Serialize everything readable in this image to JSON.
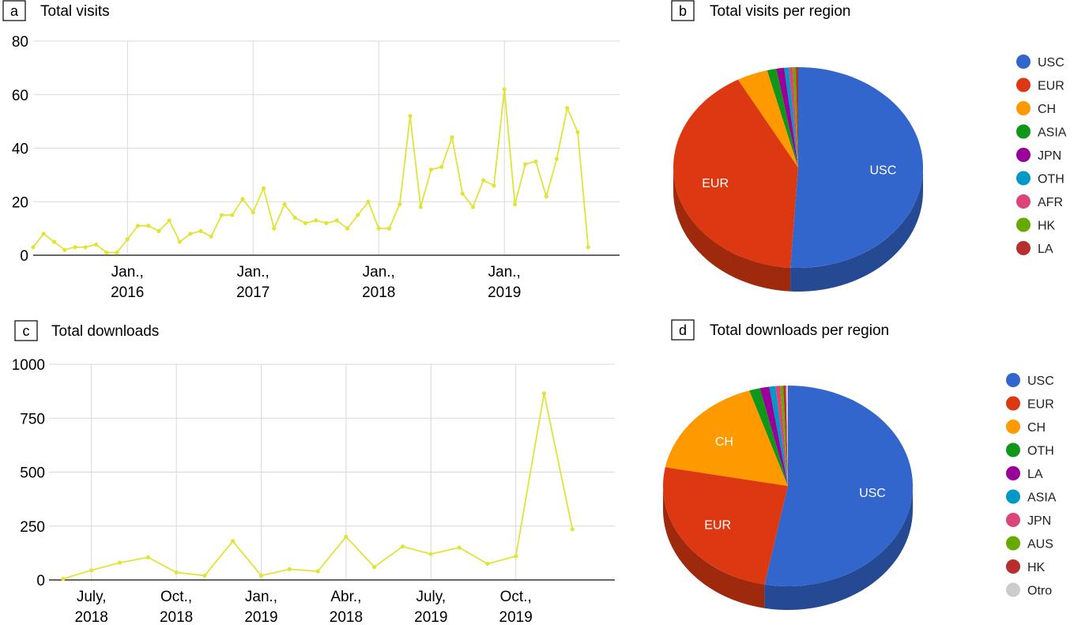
{
  "chart_data": [
    {
      "panel": "a",
      "type": "line",
      "title": "Total visits",
      "ylim": [
        0,
        80
      ],
      "yticks": [
        0,
        20,
        40,
        60,
        80
      ],
      "xlim": [
        "2015-04",
        "2019-12"
      ],
      "xticks": [
        {
          "date": "2016-01",
          "label": [
            "Jan.,",
            "2016"
          ]
        },
        {
          "date": "2017-01",
          "label": [
            "Jan.,",
            "2017"
          ]
        },
        {
          "date": "2018-01",
          "label": [
            "Jan.,",
            "2018"
          ]
        },
        {
          "date": "2019-01",
          "label": [
            "Jan.,",
            "2019"
          ]
        }
      ],
      "grid": true,
      "color": "#E1E337",
      "points": [
        [
          "2015-04",
          3
        ],
        [
          "2015-05",
          8
        ],
        [
          "2015-06",
          5
        ],
        [
          "2015-07",
          2
        ],
        [
          "2015-08",
          3
        ],
        [
          "2015-09",
          3
        ],
        [
          "2015-10",
          4
        ],
        [
          "2015-11",
          1
        ],
        [
          "2015-12",
          1
        ],
        [
          "2016-01",
          6
        ],
        [
          "2016-02",
          11
        ],
        [
          "2016-03",
          11
        ],
        [
          "2016-04",
          9
        ],
        [
          "2016-05",
          13
        ],
        [
          "2016-06",
          5
        ],
        [
          "2016-07",
          8
        ],
        [
          "2016-08",
          9
        ],
        [
          "2016-09",
          7
        ],
        [
          "2016-10",
          15
        ],
        [
          "2016-11",
          15
        ],
        [
          "2016-12",
          21
        ],
        [
          "2017-01",
          16
        ],
        [
          "2017-02",
          25
        ],
        [
          "2017-03",
          10
        ],
        [
          "2017-04",
          19
        ],
        [
          "2017-05",
          14
        ],
        [
          "2017-06",
          12
        ],
        [
          "2017-07",
          13
        ],
        [
          "2017-08",
          12
        ],
        [
          "2017-09",
          13
        ],
        [
          "2017-10",
          10
        ],
        [
          "2017-11",
          15
        ],
        [
          "2017-12",
          20
        ],
        [
          "2018-01",
          10
        ],
        [
          "2018-02",
          10
        ],
        [
          "2018-03",
          19
        ],
        [
          "2018-04",
          52
        ],
        [
          "2018-05",
          18
        ],
        [
          "2018-06",
          32
        ],
        [
          "2018-07",
          33
        ],
        [
          "2018-08",
          44
        ],
        [
          "2018-09",
          23
        ],
        [
          "2018-10",
          18
        ],
        [
          "2018-11",
          28
        ],
        [
          "2018-12",
          26
        ],
        [
          "2019-01",
          62
        ],
        [
          "2019-02",
          19
        ],
        [
          "2019-03",
          34
        ],
        [
          "2019-04",
          35
        ],
        [
          "2019-05",
          22
        ],
        [
          "2019-06",
          36
        ],
        [
          "2019-07",
          55
        ],
        [
          "2019-08",
          46
        ],
        [
          "2019-09",
          3
        ]
      ]
    },
    {
      "panel": "b",
      "type": "pie",
      "title": "Total visits per region",
      "legend_position": "right",
      "slices": [
        {
          "label": "USC",
          "value": 51.0,
          "color": "#3366CC",
          "show_label": true
        },
        {
          "label": "EUR",
          "value": 41.0,
          "color": "#DC3912",
          "show_label": true
        },
        {
          "label": "CH",
          "value": 4.0,
          "color": "#FF9900",
          "show_label": false
        },
        {
          "label": "ASIA",
          "value": 1.2,
          "color": "#109618",
          "show_label": false
        },
        {
          "label": "JPN",
          "value": 1.0,
          "color": "#990099",
          "show_label": false
        },
        {
          "label": "OTH",
          "value": 0.6,
          "color": "#0099C6",
          "show_label": false
        },
        {
          "label": "AFR",
          "value": 0.5,
          "color": "#DD4477",
          "show_label": false
        },
        {
          "label": "HK",
          "value": 0.4,
          "color": "#66AA00",
          "show_label": false
        },
        {
          "label": "LA",
          "value": 0.3,
          "color": "#B82E2E",
          "show_label": false
        }
      ]
    },
    {
      "panel": "c",
      "type": "line",
      "title": "Total downloads",
      "ylim": [
        0,
        1000
      ],
      "yticks": [
        0,
        250,
        500,
        750,
        1000
      ],
      "x_category_count": 20,
      "xticks": [
        {
          "index": 1,
          "label": [
            "July,",
            "2018"
          ]
        },
        {
          "index": 4,
          "label": [
            "Oct.,",
            "2018"
          ]
        },
        {
          "index": 7,
          "label": [
            "Jan.,",
            "2019"
          ]
        },
        {
          "index": 10,
          "label": [
            "Abr.,",
            "2018"
          ]
        },
        {
          "index": 13,
          "label": [
            "July,",
            "2019"
          ]
        },
        {
          "index": 16,
          "label": [
            "Oct.,",
            "2019"
          ]
        }
      ],
      "grid": true,
      "color": "#E1E337",
      "values": [
        5,
        45,
        80,
        105,
        35,
        20,
        180,
        20,
        50,
        40,
        200,
        60,
        155,
        120,
        150,
        75,
        110,
        865,
        235
      ]
    },
    {
      "panel": "d",
      "type": "pie",
      "title": "Total downloads per region",
      "legend_position": "right",
      "slices": [
        {
          "label": "USC",
          "value": 53.0,
          "color": "#3366CC",
          "show_label": true
        },
        {
          "label": "EUR",
          "value": 25.0,
          "color": "#DC3912",
          "show_label": true
        },
        {
          "label": "CH",
          "value": 17.0,
          "color": "#FF9900",
          "show_label": true
        },
        {
          "label": "OTH",
          "value": 1.4,
          "color": "#109618",
          "show_label": false
        },
        {
          "label": "LA",
          "value": 1.2,
          "color": "#990099",
          "show_label": false
        },
        {
          "label": "ASIA",
          "value": 0.8,
          "color": "#0099C6",
          "show_label": false
        },
        {
          "label": "JPN",
          "value": 0.6,
          "color": "#DD4477",
          "show_label": false
        },
        {
          "label": "AUS",
          "value": 0.4,
          "color": "#66AA00",
          "show_label": false
        },
        {
          "label": "HK",
          "value": 0.35,
          "color": "#B82E2E",
          "show_label": false
        },
        {
          "label": "Otro",
          "value": 0.25,
          "color": "#CCCCCC",
          "show_label": false
        }
      ]
    }
  ]
}
